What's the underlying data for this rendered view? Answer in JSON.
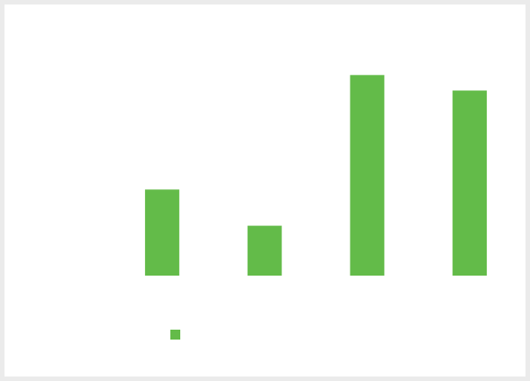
{
  "chart_data": {
    "type": "bar",
    "categories": [
      "",
      "",
      "",
      ""
    ],
    "values": [
      1.0,
      0.58,
      2.33,
      2.15
    ],
    "title": "",
    "xlabel": "",
    "ylabel": "",
    "ylim": [
      0,
      2.5
    ],
    "grid": false,
    "legend": {
      "placement": "bottom-left",
      "entries": [
        {
          "name": "",
          "color": "#63bb49"
        }
      ]
    },
    "colors": {
      "bar": "#63bb49",
      "background": "#ffffff",
      "border": "#ebebeb"
    }
  }
}
